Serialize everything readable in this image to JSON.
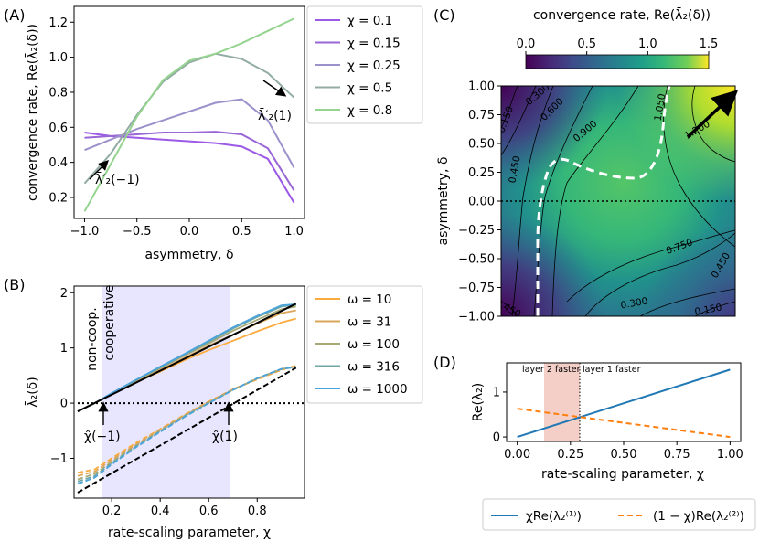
{
  "chart_data": [
    {
      "panel": "(A)",
      "type": "line",
      "xlabel": "asymmetry, δ",
      "ylabel": "convergence rate, Re(λ̄₂(δ))",
      "xlim": [
        -1.1,
        1.1
      ],
      "ylim": [
        0.08,
        1.29
      ],
      "xticks": [
        "-1.0",
        "-0.5",
        "0.0",
        "0.5",
        "1.0"
      ],
      "yticks": [
        "0.2",
        "0.4",
        "0.6",
        "0.8",
        "1.0",
        "1.2"
      ],
      "x": [
        -1.0,
        -0.75,
        -0.5,
        -0.25,
        0.0,
        0.25,
        0.5,
        0.75,
        1.0
      ],
      "series": [
        {
          "name": "χ = 0.1",
          "color": "#9b59e6",
          "values": [
            0.57,
            0.55,
            0.54,
            0.53,
            0.52,
            0.51,
            0.49,
            0.42,
            0.17
          ]
        },
        {
          "name": "χ = 0.15",
          "color": "#9966d6",
          "values": [
            0.54,
            0.55,
            0.56,
            0.57,
            0.57,
            0.575,
            0.56,
            0.48,
            0.24
          ]
        },
        {
          "name": "χ = 0.25",
          "color": "#9d91cc",
          "values": [
            0.47,
            0.53,
            0.59,
            0.64,
            0.69,
            0.74,
            0.76,
            0.64,
            0.37
          ]
        },
        {
          "name": "χ = 0.5",
          "color": "#93aba5",
          "values": [
            0.28,
            0.45,
            0.67,
            0.86,
            0.97,
            1.02,
            0.99,
            0.91,
            0.77
          ]
        },
        {
          "name": "χ = 0.8",
          "color": "#95d48f",
          "values": [
            0.12,
            0.39,
            0.66,
            0.87,
            0.98,
            1.02,
            1.08,
            1.15,
            1.22
          ]
        }
      ],
      "annotations": [
        "λ̄′₂(1)",
        "λ̄′₂(−1)"
      ]
    },
    {
      "panel": "(B)",
      "type": "line",
      "xlabel": "rate-scaling parameter, χ",
      "ylabel": "λ̄₂(δ)",
      "xlim": [
        0.045,
        0.995
      ],
      "ylim": [
        -1.72,
        2.12
      ],
      "xticks": [
        "0.2",
        "0.4",
        "0.6",
        "0.8"
      ],
      "yticks": [
        "-1",
        "0",
        "1",
        "2"
      ],
      "x": [
        0.06,
        0.13,
        0.2,
        0.3,
        0.4,
        0.5,
        0.6,
        0.7,
        0.8,
        0.9,
        0.96
      ],
      "series": [
        {
          "name": "ω = 10",
          "color": "#fbab3e",
          "upper": [
            -0.15,
            0.0,
            0.17,
            0.38,
            0.57,
            0.78,
            0.96,
            1.13,
            1.3,
            1.46,
            1.53
          ],
          "lower": [
            -1.26,
            -1.2,
            -1.0,
            -0.72,
            -0.47,
            -0.21,
            0.03,
            0.25,
            0.43,
            0.6,
            0.68
          ]
        },
        {
          "name": "ω = 31",
          "color": "#d9a65a",
          "upper": [
            -0.15,
            0.0,
            0.17,
            0.39,
            0.6,
            0.82,
            1.04,
            1.24,
            1.44,
            1.63,
            1.68
          ],
          "lower": [
            -1.32,
            -1.24,
            -1.03,
            -0.75,
            -0.48,
            -0.22,
            0.02,
            0.25,
            0.44,
            0.61,
            0.67
          ]
        },
        {
          "name": "ω = 100",
          "color": "#a8a877",
          "upper": [
            -0.15,
            0.0,
            0.18,
            0.41,
            0.63,
            0.86,
            1.08,
            1.31,
            1.51,
            1.7,
            1.75
          ],
          "lower": [
            -1.38,
            -1.28,
            -1.07,
            -0.77,
            -0.5,
            -0.23,
            0.01,
            0.24,
            0.45,
            0.62,
            0.66
          ]
        },
        {
          "name": "ω = 316",
          "color": "#6ea6a5",
          "upper": [
            -0.15,
            0.0,
            0.18,
            0.42,
            0.65,
            0.88,
            1.11,
            1.35,
            1.56,
            1.75,
            1.78
          ],
          "lower": [
            -1.42,
            -1.32,
            -1.09,
            -0.79,
            -0.51,
            -0.24,
            0.0,
            0.24,
            0.45,
            0.62,
            0.66
          ]
        },
        {
          "name": "ω = 1000",
          "color": "#4aa3db",
          "upper": [
            -0.15,
            0.0,
            0.18,
            0.42,
            0.66,
            0.89,
            1.13,
            1.37,
            1.58,
            1.77,
            1.79
          ],
          "lower": [
            -1.46,
            -1.35,
            -1.11,
            -0.8,
            -0.52,
            -0.25,
            0.0,
            0.24,
            0.45,
            0.62,
            0.65
          ]
        }
      ],
      "region_labels": [
        "non-coop.",
        "cooperative"
      ],
      "cooperative_range": [
        0.13,
        0.7
      ],
      "annotations": [
        "χ̂(−1)",
        "χ̂(1)"
      ]
    },
    {
      "panel": "(C)",
      "type": "heatmap",
      "title": "convergence rate, Re(λ̄₂(δ))",
      "ylabel": "asymmetry, δ",
      "ylim": [
        -1.0,
        1.0
      ],
      "yticks": [
        "1.00",
        "0.75",
        "0.50",
        "0.25",
        "0.00",
        "-0.25",
        "-0.50",
        "-0.75",
        "-1.00"
      ],
      "colorbar_ticks": [
        "0.0",
        "0.5",
        "1.0",
        "1.5"
      ],
      "colorbar_range": [
        0.0,
        1.5
      ],
      "contour_labels": [
        "0.150",
        "0.300",
        "0.450",
        "0.600",
        "0.900",
        "1.050",
        "1.200",
        "0.750",
        "0.450",
        "0.300",
        "0.150",
        "0.450"
      ]
    },
    {
      "panel": "(D)",
      "type": "line",
      "xlabel": "rate-scaling parameter, χ",
      "ylabel": "Re(λ₂)",
      "xlim": [
        -0.05,
        1.05
      ],
      "ylim": [
        -0.1,
        1.65
      ],
      "xticks": [
        "0.00",
        "0.25",
        "0.50",
        "0.75",
        "1.00"
      ],
      "yticks": [
        "0",
        "1"
      ],
      "x": [
        0.0,
        1.0
      ],
      "series": [
        {
          "name": "χRe(λ₂⁽¹⁾)",
          "color": "#1f77b4",
          "style": "solid",
          "values": [
            0.0,
            1.5
          ]
        },
        {
          "name": "(1 − χ)Re(λ₂⁽²⁾)",
          "color": "#ff7f0e",
          "style": "dashed",
          "values": [
            0.63,
            0.0
          ]
        }
      ],
      "region_labels": [
        "layer 2 faster",
        "layer 1 faster"
      ],
      "shaded_range": [
        0.13,
        0.3
      ],
      "crossover": 0.3
    }
  ],
  "panel_labels": [
    "(A)",
    "(B)",
    "(C)",
    "(D)"
  ],
  "legends": {
    "A": [
      "χ = 0.1",
      "χ = 0.15",
      "χ = 0.25",
      "χ = 0.5",
      "χ = 0.8"
    ],
    "B": [
      "ω = 10",
      "ω = 31",
      "ω = 100",
      "ω = 316",
      "ω = 1000"
    ],
    "D": [
      "χRe(λ₂⁽¹⁾)",
      "(1 − χ)Re(λ₂⁽²⁾)"
    ]
  }
}
